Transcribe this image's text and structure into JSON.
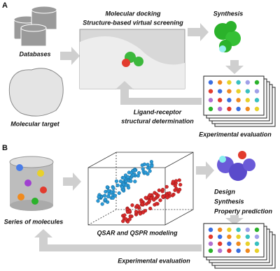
{
  "panel_a": {
    "label": "A",
    "databases": "Databases",
    "target": "Molecular target",
    "docking": [
      "Molecular docking",
      "Structure-based virtual screening"
    ],
    "synthesis": "Synthesis",
    "determination": [
      "Ligand-receptor",
      "structural determination"
    ],
    "evaluation": "Experimental evaluation"
  },
  "panel_b": {
    "label": "B",
    "series": "Series of molecules",
    "modeling": "QSAR and QSPR modeling",
    "design": [
      "Design",
      "Synthesis",
      "Property prediction"
    ],
    "evaluation": "Experimental evaluation"
  }
}
